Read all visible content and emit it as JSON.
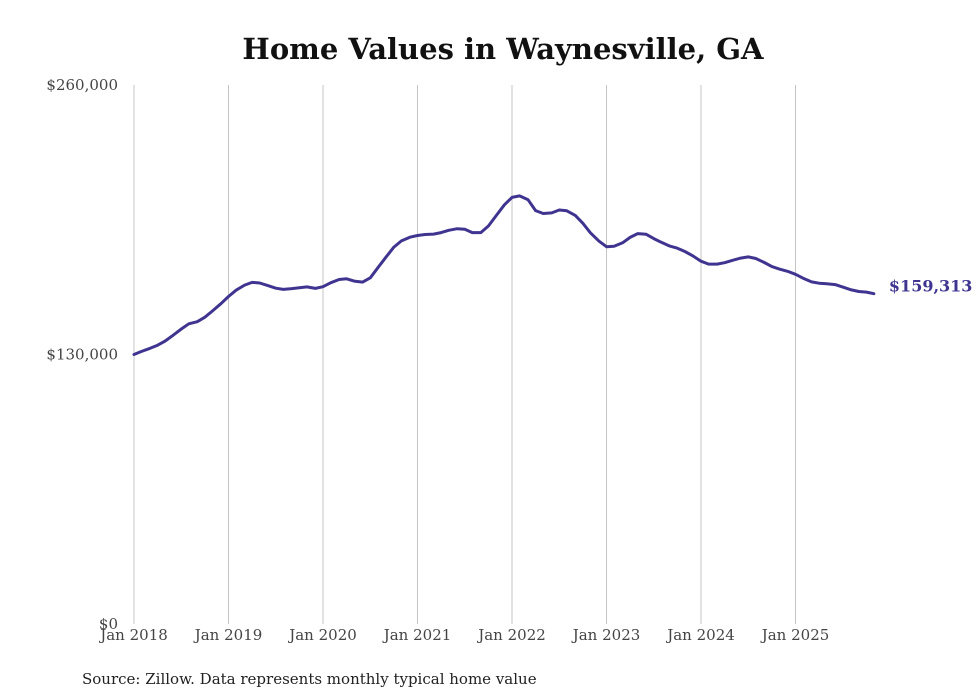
{
  "chart_data": {
    "type": "line",
    "title": "Home Values in Waynesville, GA",
    "xlabel": "",
    "ylabel": "",
    "source": "Source: Zillow. Data represents monthly typical home value",
    "ylim": [
      0,
      260000
    ],
    "xlim": [
      2018.0,
      2025.83
    ],
    "y_ticks": [
      {
        "value": 0,
        "label": "$0"
      },
      {
        "value": 130000,
        "label": "$130,000"
      },
      {
        "value": 260000,
        "label": "$260,000"
      }
    ],
    "x_ticks": [
      {
        "value": 2018,
        "label": "Jan 2018"
      },
      {
        "value": 2019,
        "label": "Jan 2019"
      },
      {
        "value": 2020,
        "label": "Jan 2020"
      },
      {
        "value": 2021,
        "label": "Jan 2021"
      },
      {
        "value": 2022,
        "label": "Jan 2022"
      },
      {
        "value": 2023,
        "label": "Jan 2023"
      },
      {
        "value": 2024,
        "label": "Jan 2024"
      },
      {
        "value": 2025,
        "label": "Jan 2025"
      }
    ],
    "grid": "vertical",
    "line_color": "#3f3590",
    "series": [
      {
        "name": "Typical home value",
        "end_label": "$159,313",
        "x": [
          2018.0,
          2018.08,
          2018.17,
          2018.25,
          2018.33,
          2018.42,
          2018.5,
          2018.58,
          2018.67,
          2018.75,
          2018.83,
          2018.92,
          2019.0,
          2019.08,
          2019.17,
          2019.25,
          2019.33,
          2019.42,
          2019.5,
          2019.58,
          2019.67,
          2019.75,
          2019.83,
          2019.92,
          2020.0,
          2020.08,
          2020.17,
          2020.25,
          2020.33,
          2020.42,
          2020.5,
          2020.58,
          2020.67,
          2020.75,
          2020.83,
          2020.92,
          2021.0,
          2021.08,
          2021.17,
          2021.25,
          2021.33,
          2021.42,
          2021.5,
          2021.58,
          2021.67,
          2021.75,
          2021.83,
          2021.92,
          2022.0,
          2022.08,
          2022.17,
          2022.25,
          2022.33,
          2022.42,
          2022.5,
          2022.58,
          2022.67,
          2022.75,
          2022.83,
          2022.92,
          2023.0,
          2023.08,
          2023.17,
          2023.25,
          2023.33,
          2023.42,
          2023.5,
          2023.58,
          2023.67,
          2023.75,
          2023.83,
          2023.92,
          2024.0,
          2024.08,
          2024.17,
          2024.25,
          2024.33,
          2024.42,
          2024.5,
          2024.58,
          2024.67,
          2024.75,
          2024.83,
          2024.92,
          2025.0,
          2025.08,
          2025.17,
          2025.25,
          2025.33,
          2025.42,
          2025.5,
          2025.58,
          2025.67,
          2025.75,
          2025.83
        ],
        "values": [
          130000,
          131500,
          133000,
          134500,
          136500,
          139500,
          142300,
          144800,
          145800,
          148000,
          151000,
          154500,
          158000,
          161000,
          163500,
          164800,
          164500,
          163200,
          162000,
          161400,
          161800,
          162200,
          162600,
          161900,
          162700,
          164600,
          166200,
          166500,
          165400,
          164900,
          167000,
          171800,
          177200,
          181800,
          184800,
          186600,
          187400,
          187900,
          188100,
          188800,
          189900,
          190700,
          190400,
          188800,
          188800,
          192000,
          196800,
          202200,
          205800,
          206500,
          204600,
          199400,
          198000,
          198300,
          199700,
          199300,
          197100,
          193300,
          188700,
          184700,
          182000,
          182200,
          183900,
          186500,
          188300,
          188000,
          185900,
          184100,
          182300,
          181300,
          179700,
          177400,
          175000,
          173600,
          173600,
          174300,
          175400,
          176500,
          177100,
          176300,
          174400,
          172400,
          171200,
          170100,
          168700,
          166800,
          165000,
          164400,
          164100,
          163700,
          162500,
          161300,
          160400,
          160100,
          159313
        ]
      }
    ]
  }
}
